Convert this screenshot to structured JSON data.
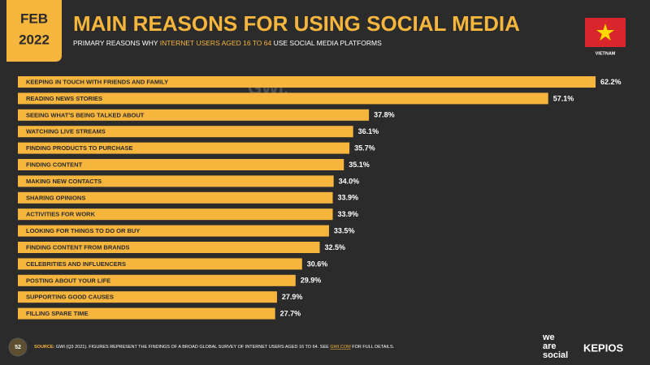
{
  "badge": {
    "month": "FEB",
    "year": "2022"
  },
  "country": "VIETNAM",
  "watermark": "GWI.",
  "footer": {
    "page": "52",
    "source": [
      "SOURCE: ",
      "GWI (Q3 2021). FIGURES REPRESENT THE FINDINGS OF A BROAD GLOBAL SURVEY OF INTERNET USERS AGED 16 TO 64. SEE ",
      "GWI.COM",
      " FOR FULL DETAILS."
    ],
    "logos": [
      "we",
      "are",
      "social",
      "KEPIOS"
    ]
  },
  "chart_data": {
    "type": "bar",
    "orientation": "horizontal",
    "title": "MAIN REASONS FOR USING SOCIAL MEDIA",
    "subtitle": [
      "PRIMARY REASONS WHY ",
      "INTERNET USERS AGED 16 TO 64",
      " USE SOCIAL MEDIA PLATFORMS"
    ],
    "color": "#f6b63e",
    "categories": [
      "KEEPING IN TOUCH WITH FRIENDS AND FAMILY",
      "READING NEWS STORIES",
      "SEEING WHAT'S BEING TALKED ABOUT",
      "WATCHING LIVE STREAMS",
      "FINDING PRODUCTS TO PURCHASE",
      "FINDING CONTENT",
      "MAKING NEW CONTACTS",
      "SHARING OPINIONS",
      "ACTIVITIES FOR WORK",
      "LOOKING FOR THINGS TO DO OR BUY",
      "FINDING CONTENT FROM BRANDS",
      "CELEBRITIES AND INFLUENCERS",
      "POSTING ABOUT YOUR LIFE",
      "SUPPORTING GOOD CAUSES",
      "FILLING SPARE TIME"
    ],
    "values": [
      62.2,
      57.1,
      37.8,
      36.1,
      35.7,
      35.1,
      34.0,
      33.9,
      33.9,
      33.5,
      32.5,
      30.6,
      29.9,
      27.9,
      27.7
    ],
    "value_labels": [
      "62.2%",
      "57.1%",
      "37.8%",
      "36.1%",
      "35.7%",
      "35.1%",
      "34.0%",
      "33.9%",
      "33.9%",
      "33.5%",
      "32.5%",
      "30.6%",
      "29.9%",
      "27.9%",
      "27.7%"
    ]
  }
}
